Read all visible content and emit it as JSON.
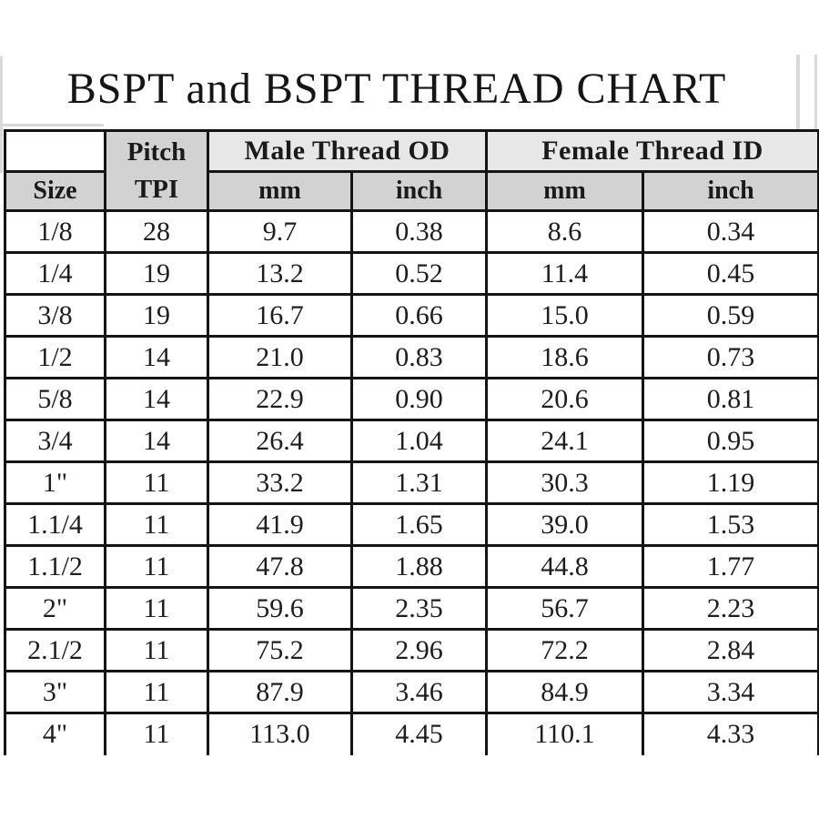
{
  "page": {
    "title": "BSPT and BSPT THREAD CHART"
  },
  "colors": {
    "table_border": "#141414",
    "group_header_bg": "#e7e7e7",
    "unit_header_bg": "#d2d2d2",
    "data_bg": "#ffffff",
    "artifact_line": "#d9d9d9",
    "text": "#1a1a1a"
  },
  "table": {
    "header": {
      "size_label": "Size",
      "pitch_line1": "Pitch",
      "pitch_line2": "TPI",
      "male_group_label": "Male Thread OD",
      "female_group_label": "Female Thread ID",
      "male_mm_label": "mm",
      "male_inch_label": "inch",
      "female_mm_label": "mm",
      "female_inch_label": "inch"
    },
    "field_order": [
      "size",
      "tpi",
      "male_mm",
      "male_inch",
      "female_mm",
      "female_inch"
    ],
    "rows": [
      {
        "size": "1/8",
        "tpi": "28",
        "male_mm": "9.7",
        "male_inch": "0.38",
        "female_mm": "8.6",
        "female_inch": "0.34"
      },
      {
        "size": "1/4",
        "tpi": "19",
        "male_mm": "13.2",
        "male_inch": "0.52",
        "female_mm": "11.4",
        "female_inch": "0.45"
      },
      {
        "size": "3/8",
        "tpi": "19",
        "male_mm": "16.7",
        "male_inch": "0.66",
        "female_mm": "15.0",
        "female_inch": "0.59"
      },
      {
        "size": "1/2",
        "tpi": "14",
        "male_mm": "21.0",
        "male_inch": "0.83",
        "female_mm": "18.6",
        "female_inch": "0.73"
      },
      {
        "size": "5/8",
        "tpi": "14",
        "male_mm": "22.9",
        "male_inch": "0.90",
        "female_mm": "20.6",
        "female_inch": "0.81"
      },
      {
        "size": "3/4",
        "tpi": "14",
        "male_mm": "26.4",
        "male_inch": "1.04",
        "female_mm": "24.1",
        "female_inch": "0.95"
      },
      {
        "size": "1\"",
        "tpi": "11",
        "male_mm": "33.2",
        "male_inch": "1.31",
        "female_mm": "30.3",
        "female_inch": "1.19"
      },
      {
        "size": "1.1/4",
        "tpi": "11",
        "male_mm": "41.9",
        "male_inch": "1.65",
        "female_mm": "39.0",
        "female_inch": "1.53"
      },
      {
        "size": "1.1/2",
        "tpi": "11",
        "male_mm": "47.8",
        "male_inch": "1.88",
        "female_mm": "44.8",
        "female_inch": "1.77"
      },
      {
        "size": "2\"",
        "tpi": "11",
        "male_mm": "59.6",
        "male_inch": "2.35",
        "female_mm": "56.7",
        "female_inch": "2.23"
      },
      {
        "size": "2.1/2",
        "tpi": "11",
        "male_mm": "75.2",
        "male_inch": "2.96",
        "female_mm": "72.2",
        "female_inch": "2.84"
      },
      {
        "size": "3\"",
        "tpi": "11",
        "male_mm": "87.9",
        "male_inch": "3.46",
        "female_mm": "84.9",
        "female_inch": "3.34"
      },
      {
        "size": "4\"",
        "tpi": "11",
        "male_mm": "113.0",
        "male_inch": "4.45",
        "female_mm": "110.1",
        "female_inch": "4.33"
      }
    ]
  }
}
